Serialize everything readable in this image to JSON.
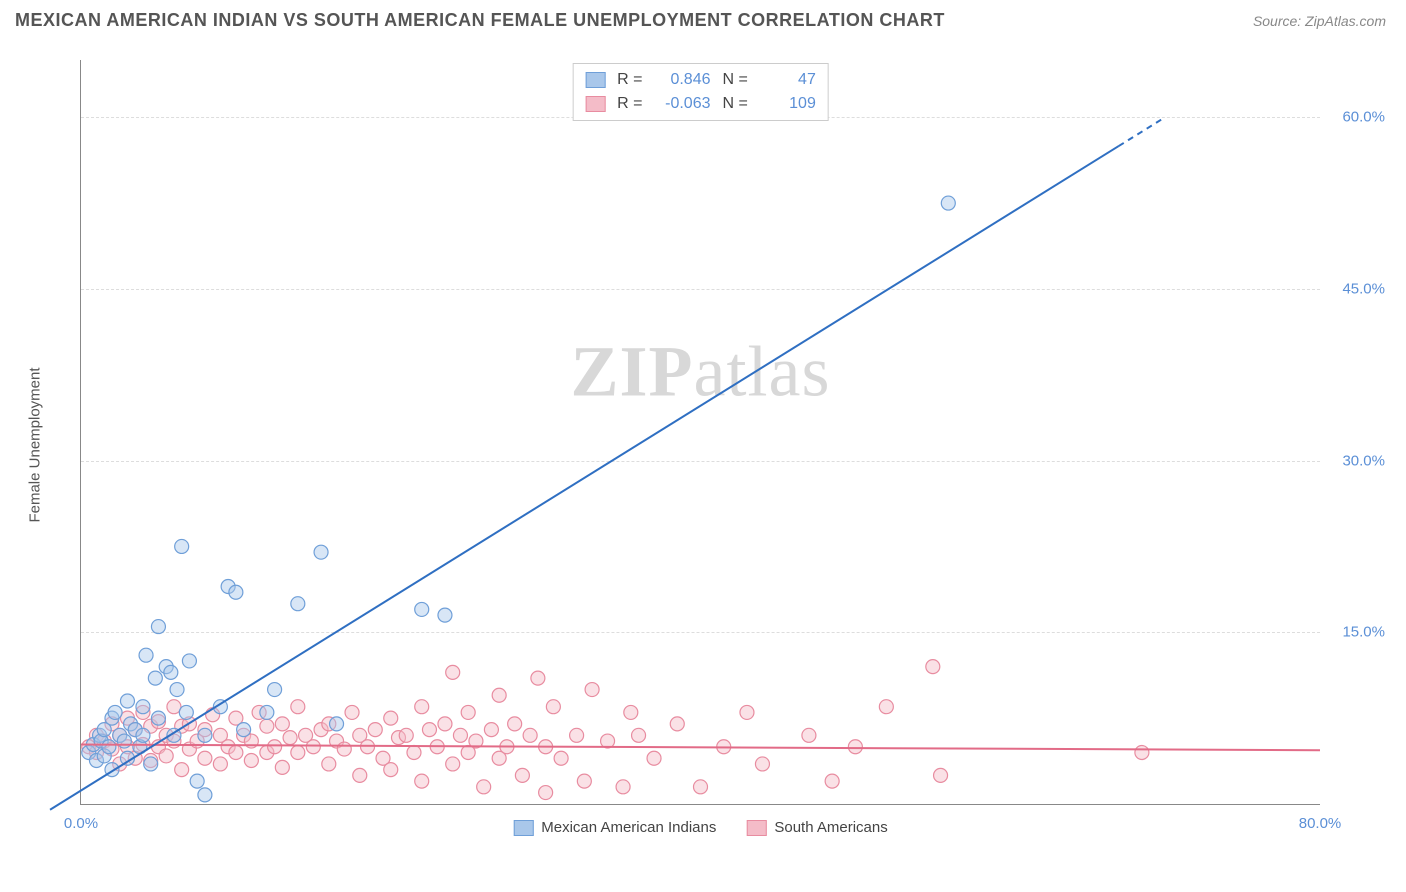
{
  "title": "MEXICAN AMERICAN INDIAN VS SOUTH AMERICAN FEMALE UNEMPLOYMENT CORRELATION CHART",
  "source": "Source: ZipAtlas.com",
  "watermark_zip": "ZIP",
  "watermark_atlas": "atlas",
  "y_axis_title": "Female Unemployment",
  "chart": {
    "type": "scatter-correlation",
    "background_color": "#ffffff",
    "grid_color": "#dddddd",
    "axis_color": "#888888",
    "tick_label_color": "#5b8fd6",
    "label_fontsize": 15,
    "title_fontsize": 18,
    "xlim": [
      0,
      80
    ],
    "ylim": [
      0,
      65
    ],
    "x_ticks": [
      {
        "v": 0,
        "label": "0.0%"
      },
      {
        "v": 80,
        "label": "80.0%"
      }
    ],
    "y_ticks": [
      {
        "v": 15,
        "label": "15.0%"
      },
      {
        "v": 30,
        "label": "30.0%"
      },
      {
        "v": 45,
        "label": "45.0%"
      },
      {
        "v": 60,
        "label": "60.0%"
      }
    ],
    "marker_radius": 7,
    "marker_fill_opacity": 0.45,
    "line_width": 2
  },
  "series": {
    "a": {
      "name": "Mexican American Indians",
      "fill": "#a9c7ea",
      "stroke": "#6f9fd8",
      "line_stroke": "#2f6fc2",
      "r_label": "R =",
      "r_value": "0.846",
      "n_label": "N =",
      "n_value": "47",
      "trend": {
        "x1": -2,
        "y1": -0.5,
        "x2": 70,
        "y2": 60,
        "dash_from_x": 67
      },
      "points": [
        [
          0.5,
          4.5
        ],
        [
          0.8,
          5.2
        ],
        [
          1.0,
          3.8
        ],
        [
          1.2,
          6.0
        ],
        [
          1.3,
          5.5
        ],
        [
          1.5,
          4.2
        ],
        [
          1.5,
          6.5
        ],
        [
          1.8,
          5.0
        ],
        [
          2.0,
          7.5
        ],
        [
          2.0,
          3.0
        ],
        [
          2.2,
          8.0
        ],
        [
          2.5,
          6.0
        ],
        [
          2.8,
          5.5
        ],
        [
          3.0,
          9.0
        ],
        [
          3.0,
          4.0
        ],
        [
          3.2,
          7.0
        ],
        [
          3.5,
          6.5
        ],
        [
          3.8,
          5.0
        ],
        [
          4.0,
          8.5
        ],
        [
          4.0,
          6.0
        ],
        [
          4.2,
          13.0
        ],
        [
          4.5,
          3.5
        ],
        [
          4.8,
          11.0
        ],
        [
          5.0,
          7.5
        ],
        [
          5.0,
          15.5
        ],
        [
          5.5,
          12.0
        ],
        [
          5.8,
          11.5
        ],
        [
          6.0,
          6.0
        ],
        [
          6.2,
          10.0
        ],
        [
          6.5,
          22.5
        ],
        [
          6.8,
          8.0
        ],
        [
          7.0,
          12.5
        ],
        [
          7.5,
          2.0
        ],
        [
          8.0,
          0.8
        ],
        [
          8.0,
          6.0
        ],
        [
          9.0,
          8.5
        ],
        [
          9.5,
          19.0
        ],
        [
          10.0,
          18.5
        ],
        [
          10.5,
          6.5
        ],
        [
          12.0,
          8.0
        ],
        [
          12.5,
          10.0
        ],
        [
          14.0,
          17.5
        ],
        [
          15.5,
          22.0
        ],
        [
          16.5,
          7.0
        ],
        [
          22.0,
          17.0
        ],
        [
          23.5,
          16.5
        ],
        [
          56.0,
          52.5
        ]
      ]
    },
    "b": {
      "name": "South Americans",
      "fill": "#f4bcc8",
      "stroke": "#e88ca0",
      "line_stroke": "#e26b87",
      "r_label": "R =",
      "r_value": "-0.063",
      "n_label": "N =",
      "n_value": "109",
      "trend": {
        "x1": 0,
        "y1": 5.2,
        "x2": 80,
        "y2": 4.7
      },
      "points": [
        [
          0.5,
          5.0
        ],
        [
          1.0,
          4.5
        ],
        [
          1.0,
          6.0
        ],
        [
          1.5,
          5.5
        ],
        [
          2.0,
          4.8
        ],
        [
          2.0,
          7.0
        ],
        [
          2.5,
          3.5
        ],
        [
          2.5,
          6.0
        ],
        [
          3.0,
          5.0
        ],
        [
          3.0,
          7.5
        ],
        [
          3.5,
          4.0
        ],
        [
          3.5,
          6.5
        ],
        [
          4.0,
          5.2
        ],
        [
          4.0,
          8.0
        ],
        [
          4.5,
          3.8
        ],
        [
          4.5,
          6.8
        ],
        [
          5.0,
          5.0
        ],
        [
          5.0,
          7.2
        ],
        [
          5.5,
          4.2
        ],
        [
          5.5,
          6.0
        ],
        [
          6.0,
          5.5
        ],
        [
          6.0,
          8.5
        ],
        [
          6.5,
          3.0
        ],
        [
          6.5,
          6.8
        ],
        [
          7.0,
          4.8
        ],
        [
          7.0,
          7.0
        ],
        [
          7.5,
          5.5
        ],
        [
          8.0,
          4.0
        ],
        [
          8.0,
          6.5
        ],
        [
          8.5,
          7.8
        ],
        [
          9.0,
          3.5
        ],
        [
          9.0,
          6.0
        ],
        [
          9.5,
          5.0
        ],
        [
          10.0,
          4.5
        ],
        [
          10.0,
          7.5
        ],
        [
          10.5,
          6.0
        ],
        [
          11.0,
          3.8
        ],
        [
          11.0,
          5.5
        ],
        [
          11.5,
          8.0
        ],
        [
          12.0,
          4.5
        ],
        [
          12.0,
          6.8
        ],
        [
          12.5,
          5.0
        ],
        [
          13.0,
          7.0
        ],
        [
          13.0,
          3.2
        ],
        [
          13.5,
          5.8
        ],
        [
          14.0,
          4.5
        ],
        [
          14.0,
          8.5
        ],
        [
          14.5,
          6.0
        ],
        [
          15.0,
          5.0
        ],
        [
          15.5,
          6.5
        ],
        [
          16.0,
          3.5
        ],
        [
          16.0,
          7.0
        ],
        [
          16.5,
          5.5
        ],
        [
          17.0,
          4.8
        ],
        [
          17.5,
          8.0
        ],
        [
          18.0,
          6.0
        ],
        [
          18.0,
          2.5
        ],
        [
          18.5,
          5.0
        ],
        [
          19.0,
          6.5
        ],
        [
          19.5,
          4.0
        ],
        [
          20.0,
          7.5
        ],
        [
          20.0,
          3.0
        ],
        [
          20.5,
          5.8
        ],
        [
          21.0,
          6.0
        ],
        [
          21.5,
          4.5
        ],
        [
          22.0,
          8.5
        ],
        [
          22.0,
          2.0
        ],
        [
          22.5,
          6.5
        ],
        [
          23.0,
          5.0
        ],
        [
          23.5,
          7.0
        ],
        [
          24.0,
          3.5
        ],
        [
          24.0,
          11.5
        ],
        [
          24.5,
          6.0
        ],
        [
          25.0,
          4.5
        ],
        [
          25.0,
          8.0
        ],
        [
          25.5,
          5.5
        ],
        [
          26.0,
          1.5
        ],
        [
          26.5,
          6.5
        ],
        [
          27.0,
          4.0
        ],
        [
          27.0,
          9.5
        ],
        [
          27.5,
          5.0
        ],
        [
          28.0,
          7.0
        ],
        [
          28.5,
          2.5
        ],
        [
          29.0,
          6.0
        ],
        [
          29.5,
          11.0
        ],
        [
          30.0,
          1.0
        ],
        [
          30.0,
          5.0
        ],
        [
          30.5,
          8.5
        ],
        [
          31.0,
          4.0
        ],
        [
          32.0,
          6.0
        ],
        [
          32.5,
          2.0
        ],
        [
          33.0,
          10.0
        ],
        [
          34.0,
          5.5
        ],
        [
          35.0,
          1.5
        ],
        [
          35.5,
          8.0
        ],
        [
          36.0,
          6.0
        ],
        [
          37.0,
          4.0
        ],
        [
          38.5,
          7.0
        ],
        [
          40.0,
          1.5
        ],
        [
          41.5,
          5.0
        ],
        [
          43.0,
          8.0
        ],
        [
          44.0,
          3.5
        ],
        [
          47.0,
          6.0
        ],
        [
          48.5,
          2.0
        ],
        [
          50.0,
          5.0
        ],
        [
          52.0,
          8.5
        ],
        [
          55.0,
          12.0
        ],
        [
          55.5,
          2.5
        ],
        [
          68.5,
          4.5
        ]
      ]
    }
  },
  "stats_box": {
    "r_label": "R =",
    "n_label": "N ="
  },
  "legend": {
    "a": "Mexican American Indians",
    "b": "South Americans"
  }
}
